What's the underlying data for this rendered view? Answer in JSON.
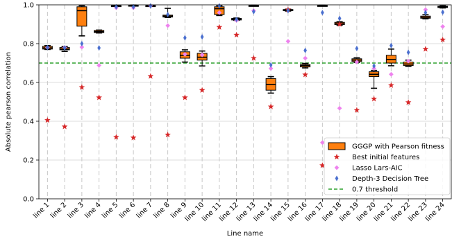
{
  "chart_data": {
    "type": "box",
    "xlabel": "Line name",
    "ylabel": "Absolute pearson correlation",
    "ylim": [
      0,
      1
    ],
    "yticks": [
      "0.0",
      "0.2",
      "0.4",
      "0.6",
      "0.8",
      "1.0"
    ],
    "categories": [
      "line 1",
      "line 2",
      "line 3",
      "line 4",
      "line 5",
      "line 6",
      "line 7",
      "line 8",
      "line 9",
      "line 10",
      "line 11",
      "line 12",
      "line 13",
      "line 14",
      "line 15",
      "line 16",
      "line 17",
      "line 18",
      "line 19",
      "line 20",
      "line 21",
      "line 22",
      "line 23",
      "line 24"
    ],
    "grid": "dashed vertical at categories, horizontal at y ticks",
    "legend_position": "lower-right",
    "threshold": 0.7,
    "series": [
      {
        "name": "GGGP with Pearson fitness",
        "color": "#ff7f0e",
        "boxes": [
          {
            "whislo": 0.77,
            "q1": 0.772,
            "med": 0.778,
            "q3": 0.786,
            "whishi": 0.79
          },
          {
            "whislo": 0.76,
            "q1": 0.768,
            "med": 0.772,
            "q3": 0.78,
            "whishi": 0.785
          },
          {
            "whislo": 0.84,
            "q1": 0.89,
            "med": 0.97,
            "q3": 0.99,
            "whishi": 0.995
          },
          {
            "whislo": 0.855,
            "q1": 0.857,
            "med": 0.862,
            "q3": 0.868,
            "whishi": 0.87
          },
          {
            "whislo": 0.993,
            "q1": 0.994,
            "med": 0.995,
            "q3": 0.996,
            "whishi": 0.997
          },
          {
            "whislo": 0.994,
            "q1": 0.995,
            "med": 0.996,
            "q3": 0.998,
            "whishi": 0.999
          },
          {
            "whislo": 0.993,
            "q1": 0.994,
            "med": 0.995,
            "q3": 0.996,
            "whishi": 0.997
          },
          {
            "whislo": 0.935,
            "q1": 0.937,
            "med": 0.942,
            "q3": 0.947,
            "whishi": 0.982
          },
          {
            "whislo": 0.705,
            "q1": 0.725,
            "med": 0.74,
            "q3": 0.758,
            "whishi": 0.768
          },
          {
            "whislo": 0.685,
            "q1": 0.715,
            "med": 0.73,
            "q3": 0.75,
            "whishi": 0.762
          },
          {
            "whislo": 0.945,
            "q1": 0.95,
            "med": 0.98,
            "q3": 0.99,
            "whishi": 0.995
          },
          {
            "whislo": 0.92,
            "q1": 0.922,
            "med": 0.926,
            "q3": 0.93,
            "whishi": 0.932
          },
          {
            "whislo": 0.994,
            "q1": 0.995,
            "med": 0.996,
            "q3": 0.997,
            "whishi": 0.998
          },
          {
            "whislo": 0.545,
            "q1": 0.56,
            "med": 0.59,
            "q3": 0.62,
            "whishi": 0.63
          },
          {
            "whislo": 0.968,
            "q1": 0.97,
            "med": 0.974,
            "q3": 0.976,
            "whishi": 0.978
          },
          {
            "whislo": 0.675,
            "q1": 0.68,
            "med": 0.687,
            "q3": 0.692,
            "whishi": 0.698
          },
          {
            "whislo": 0.994,
            "q1": 0.995,
            "med": 0.996,
            "q3": 0.997,
            "whishi": 0.998
          },
          {
            "whislo": 0.895,
            "q1": 0.898,
            "med": 0.905,
            "q3": 0.91,
            "whishi": 0.913
          },
          {
            "whislo": 0.703,
            "q1": 0.708,
            "med": 0.715,
            "q3": 0.722,
            "whishi": 0.727
          },
          {
            "whislo": 0.57,
            "q1": 0.63,
            "med": 0.642,
            "q3": 0.655,
            "whishi": 0.662
          },
          {
            "whislo": 0.686,
            "q1": 0.7,
            "med": 0.718,
            "q3": 0.74,
            "whishi": 0.772
          },
          {
            "whislo": 0.683,
            "q1": 0.687,
            "med": 0.695,
            "q3": 0.705,
            "whishi": 0.715
          },
          {
            "whislo": 0.928,
            "q1": 0.931,
            "med": 0.936,
            "q3": 0.942,
            "whishi": 0.949
          },
          {
            "whislo": 0.984,
            "q1": 0.986,
            "med": 0.99,
            "q3": 0.993,
            "whishi": 0.995
          }
        ]
      },
      {
        "name": "Best initial features",
        "color": "#d62728",
        "marker": "star",
        "values": [
          0.405,
          0.372,
          0.575,
          0.522,
          0.318,
          0.315,
          0.632,
          0.33,
          0.522,
          0.56,
          0.885,
          0.845,
          0.725,
          0.475,
          0.975,
          0.64,
          0.172,
          0.9,
          0.457,
          0.515,
          0.585,
          0.497,
          0.772,
          0.82
        ]
      },
      {
        "name": "Lasso Lars-AIC",
        "color": "#ee82ee",
        "marker": "diamond",
        "values": [
          0.78,
          0.78,
          0.782,
          0.688,
          0.985,
          0.985,
          0.995,
          0.893,
          0.745,
          0.742,
          0.96,
          0.92,
          0.97,
          0.672,
          0.812,
          0.725,
          0.29,
          0.467,
          0.705,
          0.672,
          0.642,
          0.71,
          0.975,
          0.888
        ]
      },
      {
        "name": "Depth-3 Decision Tree",
        "color": "#4a6fcf",
        "marker": "thin-diamond",
        "values": [
          0.78,
          0.778,
          0.8,
          0.778,
          0.99,
          0.99,
          0.995,
          0.95,
          0.83,
          0.835,
          0.995,
          0.925,
          0.965,
          0.69,
          0.97,
          0.765,
          0.96,
          0.93,
          0.775,
          0.685,
          0.79,
          0.755,
          0.96,
          0.962
        ]
      },
      {
        "name": "0.7 threshold",
        "color": "#2ca02c",
        "style": "dashed"
      }
    ]
  }
}
